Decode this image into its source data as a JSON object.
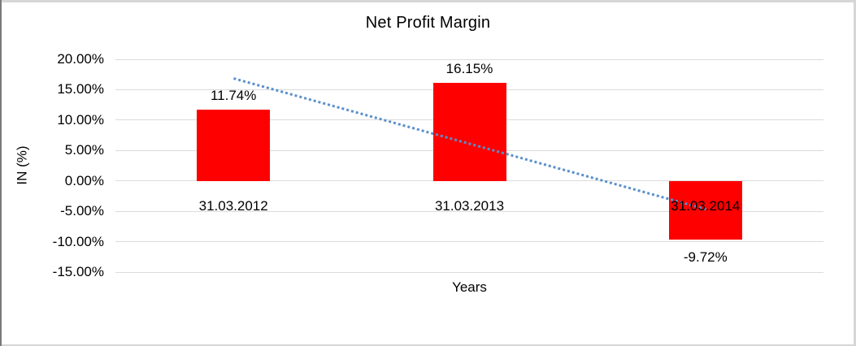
{
  "chart_data": {
    "type": "bar",
    "title": "Net Profit Margin",
    "xlabel": "Years",
    "ylabel": "IN (%)",
    "categories": [
      "31.03.2012",
      "31.03.2013",
      "31.03.2014"
    ],
    "values": [
      11.74,
      16.15,
      -9.72
    ],
    "value_labels": [
      "11.74%",
      "16.15%",
      "-9.72%"
    ],
    "ytick_labels": [
      "20.00%",
      "15.00%",
      "10.00%",
      "5.00%",
      "0.00%",
      "-5.00%",
      "-10.00%",
      "-15.00%"
    ],
    "ytick_values": [
      20,
      15,
      10,
      5,
      0,
      -5,
      -10,
      -15
    ],
    "ylim": [
      -15,
      20
    ],
    "ytick_step": 5,
    "grid": "horizontal",
    "legend": "none",
    "bar_color": "#FF0000",
    "gridline_color": "#DBDBDB",
    "text_color": "#000000",
    "trendline": {
      "type": "linear",
      "style": "dotted",
      "color": "#5A8FCB",
      "start_value": 16.8,
      "end_value": -4.7
    }
  }
}
